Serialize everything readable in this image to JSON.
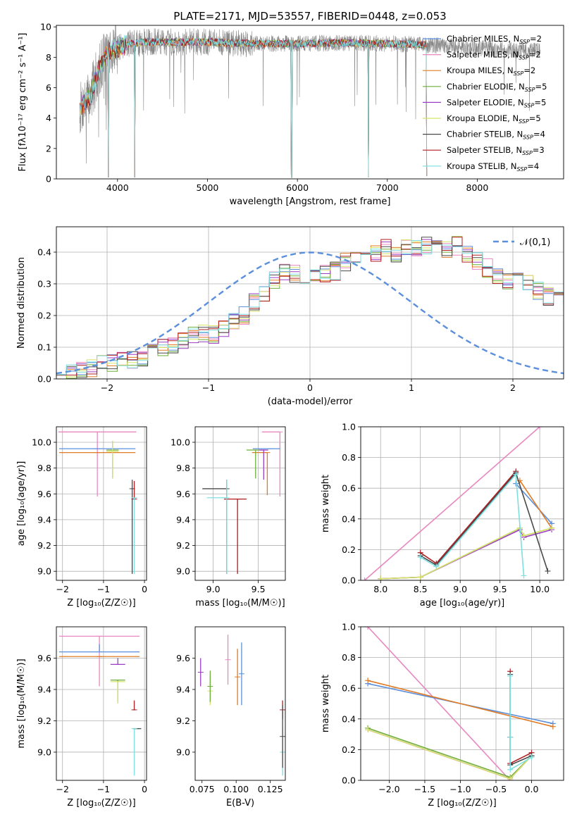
{
  "figure": {
    "title": "PLATE=2171, MJD=53557, FIBERID=0448, z=0.053"
  },
  "palette": {
    "Chabrier MILES": "#5b8fdc",
    "Salpeter MILES": "#e887c0",
    "Kroupa MILES": "#e07b24",
    "Chabrier ELODIE": "#6fae3a",
    "Salpeter ELODIE": "#9c3fc4",
    "Kroupa ELODIE": "#d7e36a",
    "Chabrier STELIB": "#4a4a4a",
    "Salpeter STELIB": "#b01e22",
    "Kroupa STELIB": "#7fdfe0",
    "data": "#888888",
    "normal": "#5b8fdc"
  },
  "chart_data": [
    {
      "id": "spectrum",
      "type": "line",
      "xlabel": "wavelength [Angstrom, rest frame]",
      "ylabel": "Flux [fλ10⁻¹⁷ erg cm⁻² s⁻¹ A⁻¹]",
      "xlim": [
        3320,
        8960
      ],
      "ylim": [
        0,
        10.1
      ],
      "xticks": [
        4000,
        5000,
        6000,
        7000,
        8000
      ],
      "yticks": [
        0,
        2,
        4,
        6,
        8,
        10
      ],
      "grid": false,
      "legend_position": "right",
      "legend": [
        "Chabrier MILES, N_SSP=2",
        "Salpeter MILES, N_SSP=2",
        "Kroupa MILES, N_SSP=2",
        "Chabrier ELODIE, N_SSP=5",
        "Salpeter ELODIE, N_SSP=5",
        "Kroupa ELODIE, N_SSP=5",
        "Chabrier STELIB, N_SSP=4",
        "Salpeter STELIB, N_SSP=3",
        "Kroupa STELIB, N_SSP=4"
      ],
      "data_range": [
        3580,
        8700
      ],
      "continuum": {
        "x": [
          3580,
          3640,
          3700,
          3760,
          3820,
          3900,
          4000,
          4100,
          4200,
          4300,
          4500,
          5000,
          5500,
          6000,
          6500,
          7000,
          7500,
          8000,
          8700
        ],
        "y": [
          4.6,
          5.0,
          5.4,
          6.6,
          7.6,
          8.4,
          8.6,
          8.9,
          8.9,
          9.0,
          9.0,
          9.0,
          8.9,
          8.9,
          8.95,
          8.9,
          8.8,
          8.6,
          8.4
        ]
      },
      "model_range": [
        3580,
        7440
      ],
      "dips": [
        {
          "x": 3900,
          "to": 0.1
        },
        {
          "x": 4190,
          "to": 0.1
        },
        {
          "x": 5935,
          "to": 0.1
        },
        {
          "x": 6790,
          "to": 0.1
        },
        {
          "x": 7440,
          "to": 0.2
        }
      ]
    },
    {
      "id": "residuals",
      "type": "histogram",
      "xlabel": "(data-model)/error",
      "ylabel": "Normed distribution",
      "xlim": [
        -2.5,
        2.5
      ],
      "ylim": [
        0,
        0.48
      ],
      "xticks": [
        -2,
        -1,
        0,
        1,
        2
      ],
      "yticks": [
        0.0,
        0.1,
        0.2,
        0.3,
        0.4
      ],
      "grid": true,
      "legend_position": "top-right",
      "legend": [
        "𝒩(0,1)"
      ],
      "bin_width": 0.1,
      "bin_start": -2.5,
      "base_values": [
        0.02,
        0.025,
        0.03,
        0.035,
        0.045,
        0.05,
        0.055,
        0.06,
        0.07,
        0.09,
        0.1,
        0.11,
        0.12,
        0.135,
        0.145,
        0.14,
        0.16,
        0.18,
        0.2,
        0.24,
        0.27,
        0.31,
        0.34,
        0.33,
        0.32,
        0.32,
        0.33,
        0.34,
        0.37,
        0.38,
        0.39,
        0.4,
        0.41,
        0.39,
        0.41,
        0.41,
        0.42,
        0.42,
        0.41,
        0.42,
        0.39,
        0.37,
        0.35,
        0.33,
        0.31,
        0.31,
        0.3,
        0.28,
        0.26,
        0.25,
        0.24,
        0.21,
        0.2,
        0.19,
        0.18,
        0.16,
        0.14,
        0.12,
        0.11,
        0.1,
        0.09,
        0.08,
        0.07,
        0.06,
        0.055,
        0.05,
        0.045,
        0.04,
        0.035,
        0.03
      ]
    },
    {
      "id": "age_vs_Z",
      "type": "errorbar",
      "xlabel": "Z [log₁₀(Z/Z☉)]",
      "ylabel": "age  [log₁₀(age/yr)]",
      "xlim": [
        -2.15,
        0.05
      ],
      "ylim": [
        8.93,
        10.12
      ],
      "xticks": [
        -2,
        -1,
        0
      ],
      "yticks": [
        9.0,
        9.2,
        9.4,
        9.6,
        9.8,
        10.0
      ],
      "grid": true,
      "points": [
        {
          "model": "Salpeter MILES",
          "x": -1.15,
          "xerr": [
            0.95,
            0.95
          ],
          "y": 10.08,
          "yerr": [
            0.5,
            0.0
          ]
        },
        {
          "model": "Chabrier MILES",
          "x": -1.15,
          "xerr": [
            0.93,
            0.93
          ],
          "y": 9.95,
          "yerr": [
            0.0,
            0.0
          ]
        },
        {
          "model": "Kroupa MILES",
          "x": -1.15,
          "xerr": [
            0.93,
            0.93
          ],
          "y": 9.92,
          "yerr": [
            0.0,
            0.0
          ]
        },
        {
          "model": "Chabrier ELODIE",
          "x": -0.78,
          "xerr": [
            0.15,
            0.15
          ],
          "y": 9.94,
          "yerr": [
            0.22,
            0.07
          ]
        },
        {
          "model": "Kroupa ELODIE",
          "x": -0.78,
          "xerr": [
            0.15,
            0.15
          ],
          "y": 9.93,
          "yerr": [
            0.21,
            0.08
          ]
        },
        {
          "model": "Chabrier STELIB",
          "x": -0.3,
          "xerr": [
            0.02,
            0.02
          ],
          "y": 9.64,
          "yerr": [
            0.66,
            0.07
          ]
        },
        {
          "model": "Salpeter STELIB",
          "x": -0.25,
          "xerr": [
            0.02,
            0.02
          ],
          "y": 9.56,
          "yerr": [
            0.0,
            0.14
          ]
        },
        {
          "model": "Kroupa STELIB",
          "x": -0.25,
          "xerr": [
            0.0,
            0.0
          ],
          "y": 9.57,
          "yerr": [
            0.59,
            0.0
          ]
        }
      ]
    },
    {
      "id": "age_vs_mass",
      "type": "errorbar",
      "xlabel": "mass [log₁₀(M/M☉)]",
      "ylabel": "",
      "xlim": [
        8.8,
        9.8
      ],
      "ylim": [
        8.93,
        10.12
      ],
      "xticks": [
        9.0,
        9.5
      ],
      "yticks": [
        9.0,
        9.2,
        9.4,
        9.6,
        9.8,
        10.0
      ],
      "grid": true,
      "points": [
        {
          "model": "Salpeter MILES",
          "x": 9.74,
          "xerr": [
            0.2,
            0.0
          ],
          "y": 10.08,
          "yerr": [
            0.5,
            0.0
          ]
        },
        {
          "model": "Chabrier MILES",
          "x": 9.64,
          "xerr": [
            0.2,
            0.1
          ],
          "y": 9.95,
          "yerr": [
            0.0,
            0.0
          ]
        },
        {
          "model": "Kroupa MILES",
          "x": 9.6,
          "xerr": [
            0.17,
            0.0
          ],
          "y": 9.92,
          "yerr": [
            0.33,
            0.0
          ]
        },
        {
          "model": "Chabrier ELODIE",
          "x": 9.47,
          "xerr": [
            0.1,
            0.1
          ],
          "y": 9.94,
          "yerr": [
            0.22,
            0.0
          ]
        },
        {
          "model": "Salpeter ELODIE",
          "x": 9.56,
          "xerr": [
            0.05,
            0.05
          ],
          "y": 9.94,
          "yerr": [
            0.23,
            0.0
          ]
        },
        {
          "model": "Chabrier STELIB",
          "x": 9.15,
          "xerr": [
            0.27,
            0.0
          ],
          "y": 9.64,
          "yerr": [
            0.66,
            0.07
          ]
        },
        {
          "model": "Salpeter STELIB",
          "x": 9.27,
          "xerr": [
            0.15,
            0.1
          ],
          "y": 9.56,
          "yerr": [
            0.58,
            0.0
          ]
        },
        {
          "model": "Kroupa STELIB",
          "x": 9.15,
          "xerr": [
            0.22,
            0.0
          ],
          "y": 9.57,
          "yerr": [
            0.59,
            0.14
          ]
        }
      ]
    },
    {
      "id": "weight_vs_age",
      "type": "line",
      "xlabel": "age  [log₁₀(age/yr)]",
      "ylabel": "mass weight",
      "xlim": [
        7.75,
        10.3
      ],
      "ylim": [
        0,
        1.0
      ],
      "xticks": [
        8.0,
        8.5,
        9.0,
        9.5,
        10.0
      ],
      "yticks": [
        0.0,
        0.2,
        0.4,
        0.6,
        0.8,
        1.0
      ],
      "grid": true,
      "series": [
        {
          "model": "Salpeter MILES",
          "x": [
            7.8,
            10.0
          ],
          "y": [
            0.0,
            1.0
          ]
        },
        {
          "model": "Chabrier MILES",
          "x": [
            9.7,
            10.15
          ],
          "y": [
            0.63,
            0.37
          ]
        },
        {
          "model": "Kroupa MILES",
          "x": [
            9.75,
            10.15
          ],
          "y": [
            0.65,
            0.34
          ]
        },
        {
          "model": "Chabrier ELODIE",
          "x": [
            8.0,
            8.5,
            9.75,
            9.8,
            10.15
          ],
          "y": [
            0.01,
            0.02,
            0.34,
            0.29,
            0.34
          ]
        },
        {
          "model": "Salpeter ELODIE",
          "x": [
            8.0,
            8.5,
            9.75,
            9.8,
            10.15
          ],
          "y": [
            0.01,
            0.02,
            0.33,
            0.28,
            0.33
          ]
        },
        {
          "model": "Kroupa ELODIE",
          "x": [
            8.0,
            8.5,
            9.75,
            9.8,
            10.15
          ],
          "y": [
            0.01,
            0.02,
            0.34,
            0.29,
            0.34
          ]
        },
        {
          "model": "Salpeter STELIB",
          "x": [
            8.5,
            8.7,
            9.7
          ],
          "y": [
            0.18,
            0.11,
            0.71
          ]
        },
        {
          "model": "Chabrier STELIB",
          "x": [
            8.5,
            8.7,
            9.7,
            10.1
          ],
          "y": [
            0.16,
            0.1,
            0.7,
            0.06
          ]
        },
        {
          "model": "Kroupa STELIB",
          "x": [
            8.5,
            8.7,
            9.7,
            9.8
          ],
          "y": [
            0.15,
            0.09,
            0.69,
            0.03
          ]
        }
      ]
    },
    {
      "id": "mass_vs_Z",
      "type": "errorbar",
      "xlabel": "Z [log₁₀(Z/Z☉)]",
      "ylabel": "mass [log₁₀(M/M☉)]",
      "xlim": [
        -2.15,
        0.05
      ],
      "ylim": [
        8.82,
        9.8
      ],
      "xticks": [
        -2,
        -1,
        0
      ],
      "yticks": [
        9.0,
        9.2,
        9.4,
        9.6
      ],
      "grid": true,
      "points": [
        {
          "model": "Salpeter MILES",
          "x": -1.1,
          "xerr": [
            0.98,
            0.98
          ],
          "y": 9.74,
          "yerr": [
            0.32,
            0.0
          ]
        },
        {
          "model": "Chabrier MILES",
          "x": -1.1,
          "xerr": [
            0.98,
            0.98
          ],
          "y": 9.64,
          "yerr": [
            0.0,
            0.05
          ]
        },
        {
          "model": "Kroupa MILES",
          "x": -1.1,
          "xerr": [
            0.98,
            0.98
          ],
          "y": 9.61,
          "yerr": [
            0.0,
            0.0
          ]
        },
        {
          "model": "Salpeter ELODIE",
          "x": -0.65,
          "xerr": [
            0.18,
            0.18
          ],
          "y": 9.56,
          "yerr": [
            0.0,
            0.04
          ]
        },
        {
          "model": "Chabrier ELODIE",
          "x": -0.65,
          "xerr": [
            0.18,
            0.18
          ],
          "y": 9.46,
          "yerr": [
            0.14,
            0.0
          ]
        },
        {
          "model": "Kroupa ELODIE",
          "x": -0.65,
          "xerr": [
            0.18,
            0.18
          ],
          "y": 9.45,
          "yerr": [
            0.14,
            0.0
          ]
        },
        {
          "model": "Salpeter STELIB",
          "x": -0.25,
          "xerr": [
            0.02,
            0.02
          ],
          "y": 9.27,
          "yerr": [
            0.0,
            0.06
          ]
        },
        {
          "model": "Chabrier STELIB",
          "x": -0.18,
          "xerr": [
            0.1,
            0.1
          ],
          "y": 9.15,
          "yerr": [
            0.0,
            0.0
          ]
        },
        {
          "model": "Kroupa STELIB",
          "x": -0.25,
          "xerr": [
            0.0,
            0.0
          ],
          "y": 9.15,
          "yerr": [
            0.3,
            0.0
          ]
        }
      ]
    },
    {
      "id": "mass_vs_ebv",
      "type": "errorbar",
      "xlabel": "E(B-V)",
      "ylabel": "",
      "xlim": [
        0.07,
        0.136
      ],
      "ylim": [
        8.82,
        9.8
      ],
      "xticks": [
        0.075,
        0.1,
        0.125
      ],
      "yticks": [
        9.0,
        9.2,
        9.4,
        9.6
      ],
      "grid": false,
      "points": [
        {
          "model": "Salpeter ELODIE",
          "x": 0.074,
          "xerr": [
            0.0,
            0.0
          ],
          "y": 9.51,
          "yerr": [
            0.09,
            0.09
          ]
        },
        {
          "model": "Kroupa ELODIE",
          "x": 0.081,
          "xerr": [
            0.0,
            0.0
          ],
          "y": 9.39,
          "yerr": [
            0.09,
            0.09
          ]
        },
        {
          "model": "Chabrier ELODIE",
          "x": 0.081,
          "xerr": [
            0.0,
            0.0
          ],
          "y": 9.42,
          "yerr": [
            0.1,
            0.1
          ]
        },
        {
          "model": "Salpeter MILES",
          "x": 0.094,
          "xerr": [
            0.0,
            0.0
          ],
          "y": 9.59,
          "yerr": [
            0.16,
            0.16
          ]
        },
        {
          "model": "Kroupa MILES",
          "x": 0.101,
          "xerr": [
            0.0,
            0.0
          ],
          "y": 9.48,
          "yerr": [
            0.18,
            0.18
          ]
        },
        {
          "model": "Chabrier MILES",
          "x": 0.104,
          "xerr": [
            0.0,
            0.0
          ],
          "y": 9.5,
          "yerr": [
            0.2,
            0.2
          ]
        },
        {
          "model": "Salpeter STELIB",
          "x": 0.134,
          "xerr": [
            0.0,
            0.0
          ],
          "y": 9.27,
          "yerr": [
            0.06,
            0.06
          ]
        },
        {
          "model": "Kroupa STELIB",
          "x": 0.134,
          "xerr": [
            0.0,
            0.0
          ],
          "y": 9.0,
          "yerr": [
            0.15,
            0.15
          ]
        },
        {
          "model": "Chabrier STELIB",
          "x": 0.134,
          "xerr": [
            0.0,
            0.0
          ],
          "y": 9.1,
          "yerr": [
            0.2,
            0.2
          ]
        }
      ]
    },
    {
      "id": "weight_vs_Z",
      "type": "line",
      "xlabel": "Z [log₁₀(Z/Z☉)]",
      "ylabel": "mass weight",
      "xlim": [
        -2.4,
        0.45
      ],
      "ylim": [
        0,
        1.0
      ],
      "xticks": [
        -2.0,
        -1.5,
        -1.0,
        -0.5,
        0.0
      ],
      "yticks": [
        0.0,
        0.2,
        0.4,
        0.6,
        0.8,
        1.0
      ],
      "grid": true,
      "series": [
        {
          "model": "Salpeter MILES",
          "x": [
            -2.3,
            -0.3
          ],
          "y": [
            1.0,
            0.0
          ]
        },
        {
          "model": "Chabrier MILES",
          "x": [
            -2.3,
            0.3
          ],
          "y": [
            0.63,
            0.37
          ]
        },
        {
          "model": "Kroupa MILES",
          "x": [
            -2.3,
            0.3
          ],
          "y": [
            0.65,
            0.35
          ]
        },
        {
          "model": "Chabrier ELODIE",
          "x": [
            -2.3,
            -0.3,
            0.0
          ],
          "y": [
            0.34,
            0.02,
            0.16
          ]
        },
        {
          "model": "Salpeter ELODIE",
          "x": [
            -2.3,
            -0.3,
            0.0
          ],
          "y": [
            0.33,
            0.01,
            0.16
          ]
        },
        {
          "model": "Kroupa ELODIE",
          "x": [
            -2.3,
            -0.3,
            0.0
          ],
          "y": [
            0.33,
            0.01,
            0.16
          ]
        },
        {
          "model": "Salpeter STELIB",
          "x": [
            -0.3,
            -0.3,
            -0.3,
            0.0
          ],
          "y": [
            0.71,
            0.28,
            0.11,
            0.18
          ]
        },
        {
          "model": "Chabrier STELIB",
          "x": [
            -0.3,
            -0.3,
            -0.3,
            0.0
          ],
          "y": [
            0.69,
            0.28,
            0.1,
            0.16
          ]
        },
        {
          "model": "Kroupa STELIB",
          "x": [
            -0.3,
            -0.3,
            -0.3,
            0.0
          ],
          "y": [
            0.68,
            0.28,
            0.07,
            0.15
          ]
        }
      ]
    }
  ]
}
